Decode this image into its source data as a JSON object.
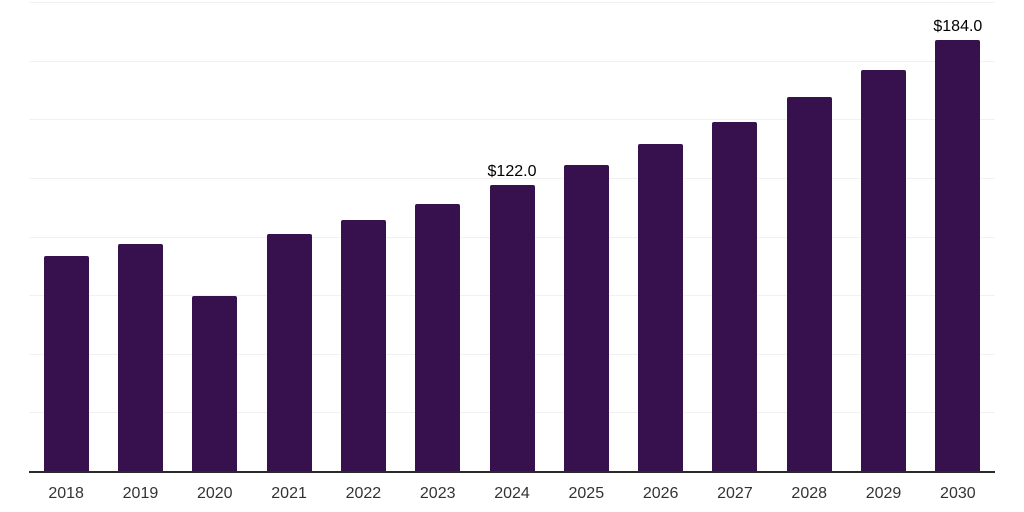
{
  "chart_data": {
    "type": "bar",
    "title": "",
    "xlabel": "",
    "ylabel": "",
    "categories": [
      "2018",
      "2019",
      "2020",
      "2021",
      "2022",
      "2023",
      "2024",
      "2025",
      "2026",
      "2027",
      "2028",
      "2029",
      "2030"
    ],
    "values": [
      91.5,
      97.0,
      74.5,
      101.0,
      107.0,
      114.0,
      122.0,
      130.5,
      139.5,
      149.0,
      159.5,
      171.0,
      184.0
    ],
    "annotations": [
      {
        "category": "2024",
        "text": "$122.0"
      },
      {
        "category": "2030",
        "text": "$184.0"
      }
    ],
    "ylim": [
      0,
      200
    ],
    "gridline_step": 25,
    "grid": true,
    "legend": "none",
    "y_axis_labels_visible": false,
    "bar_color": "#36114E",
    "axis_color": "#2a2a2a",
    "grid_color": "#f1f1f1",
    "tick_label_color": "#333333",
    "data_label_color": "#000000"
  }
}
